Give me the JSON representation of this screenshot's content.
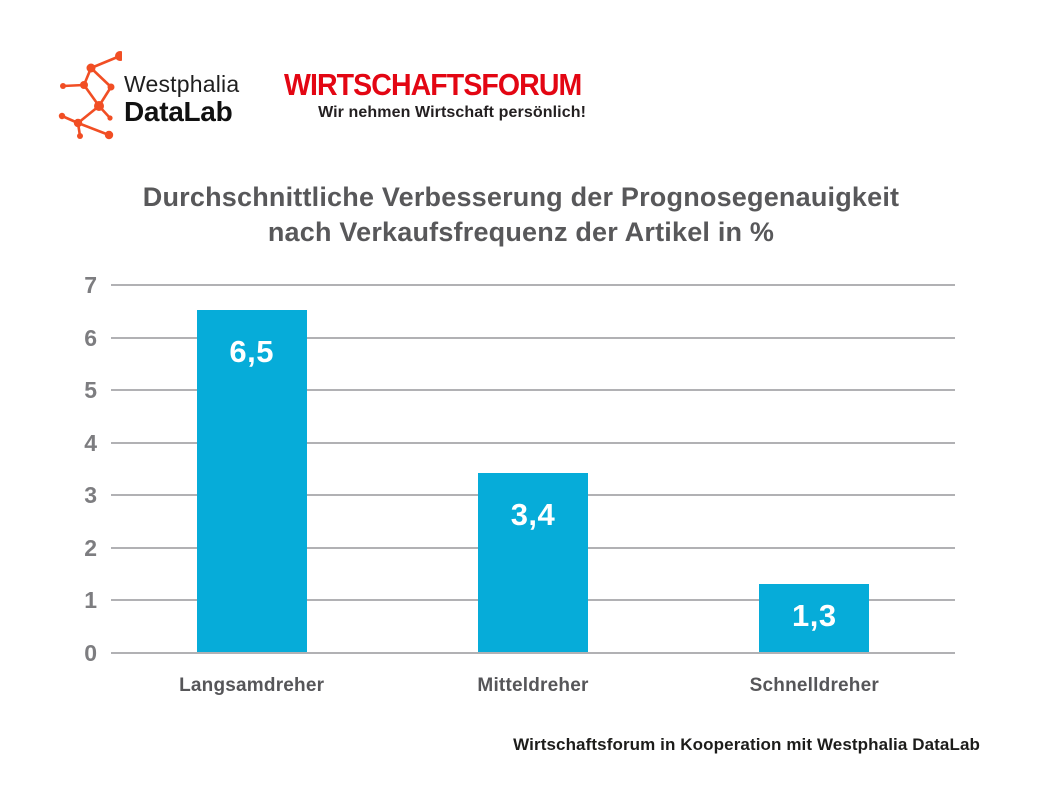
{
  "brand": {
    "logo_name_line1": "Westphalia",
    "logo_name_line2": "DataLab",
    "logo_node_color": "#f14e24",
    "forum_title": "WIRTSCHAFTSFORUM",
    "forum_tagline": "Wir nehmen Wirtschaft persönlich!",
    "forum_color": "#e30613"
  },
  "chart_data": {
    "type": "bar",
    "title": "Durchschnittliche Verbesserung der Prognosegenauigkeit nach Verkaufsfrequenz der Artikel in %",
    "title_lines": [
      "Durchschnittliche Verbesserung der Prognosegenauigkeit",
      "nach Verkaufsfrequenz der Artikel in %"
    ],
    "categories": [
      "Langsamdreher",
      "Mitteldreher",
      "Schnelldreher"
    ],
    "values": [
      6.5,
      3.4,
      1.3
    ],
    "value_labels": [
      "6,5",
      "3,4",
      "1,3"
    ],
    "y_ticks": [
      0,
      1,
      2,
      3,
      4,
      5,
      6,
      7
    ],
    "ylim": [
      0,
      7
    ],
    "bar_color": "#06acd9",
    "grid": true,
    "gridline_color": "#b1b1b4",
    "xlabel": "",
    "ylabel": ""
  },
  "footer": {
    "credit": "Wirtschaftsforum in Kooperation mit Westphalia DataLab"
  }
}
